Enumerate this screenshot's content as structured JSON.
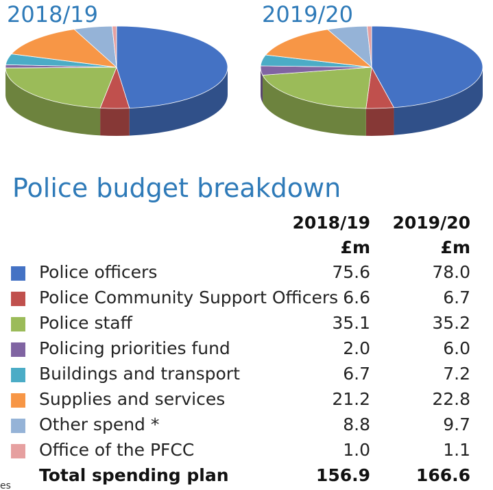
{
  "chart_data": [
    {
      "type": "pie",
      "title": "2018/19",
      "categories": [
        "Police officers",
        "Police Community Support Officers",
        "Police staff",
        "Policing priorities fund",
        "Buildings and transport",
        "Supplies and services",
        "Other spend *",
        "Office of the PFCC"
      ],
      "values": [
        75.6,
        6.6,
        35.1,
        2.0,
        6.7,
        21.2,
        8.8,
        1.0
      ],
      "style": "3d"
    },
    {
      "type": "pie",
      "title": "2019/20",
      "categories": [
        "Police officers",
        "Police Community Support Officers",
        "Police staff",
        "Policing priorities fund",
        "Buildings and transport",
        "Supplies and services",
        "Other spend *",
        "Office of the PFCC"
      ],
      "values": [
        78.0,
        6.7,
        35.2,
        6.0,
        7.2,
        22.8,
        9.7,
        1.1
      ],
      "style": "3d"
    }
  ],
  "colors": [
    "#4472c4",
    "#c0504d",
    "#9bbb59",
    "#8064a2",
    "#4bacc6",
    "#f79646",
    "#95b3d7",
    "#e6a0a0"
  ],
  "breakdown": {
    "title": "Police budget breakdown",
    "columns": [
      {
        "year": "2018/19",
        "unit": "£m"
      },
      {
        "year": "2019/20",
        "unit": "£m"
      }
    ],
    "rows": [
      {
        "label": "Police officers",
        "v2018": "75.6",
        "v2019": "78.0"
      },
      {
        "label": "Police Community Support Officers",
        "v2018": "6.6",
        "v2019": "6.7"
      },
      {
        "label": "Police staff",
        "v2018": "35.1",
        "v2019": "35.2"
      },
      {
        "label": "Policing priorities fund",
        "v2018": "2.0",
        "v2019": "6.0"
      },
      {
        "label": "Buildings and transport",
        "v2018": "6.7",
        "v2019": "7.2"
      },
      {
        "label": "Supplies and services",
        "v2018": "21.2",
        "v2019": "22.8"
      },
      {
        "label": "Other spend *",
        "v2018": "8.8",
        "v2019": "9.7"
      },
      {
        "label": "Office of the PFCC",
        "v2018": "1.0",
        "v2019": "1.1"
      }
    ],
    "total": {
      "label": "Total spending plan",
      "v2018": "156.9",
      "v2019": "166.6"
    }
  },
  "fragments": {
    "bottom_left": "es"
  }
}
